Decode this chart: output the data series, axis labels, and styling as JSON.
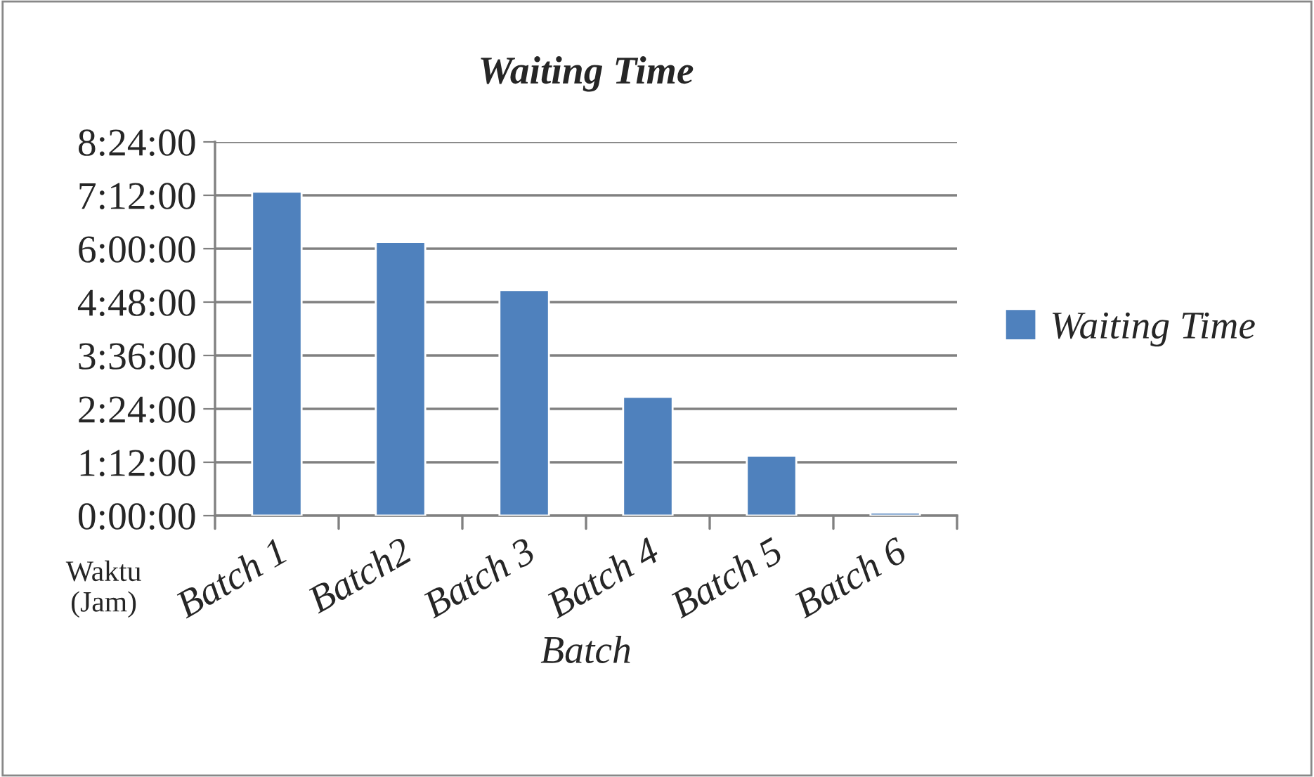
{
  "chart_data": {
    "type": "bar",
    "title": "Waiting Time",
    "xlabel": "Batch",
    "ylabel": "Waktu\n(Jam)",
    "categories": [
      "Batch 1",
      "Batch2",
      "Batch 3",
      "Batch 4",
      "Batch 5",
      "Batch 6"
    ],
    "series": [
      {
        "name": "Waiting Time",
        "color": "#4f81bd",
        "values": [
          7.28,
          6.15,
          5.07,
          2.67,
          1.35,
          0.07
        ]
      }
    ],
    "ylim": [
      0,
      8.4
    ],
    "yticks": [
      {
        "value": 0,
        "label": "0:00:00"
      },
      {
        "value": 1.2,
        "label": "1:12:00"
      },
      {
        "value": 2.4,
        "label": "2:24:00"
      },
      {
        "value": 3.6,
        "label": "3:36:00"
      },
      {
        "value": 4.8,
        "label": "4:48:00"
      },
      {
        "value": 6,
        "label": "6:00:00"
      },
      {
        "value": 7.2,
        "label": "7:12:00"
      },
      {
        "value": 8.4,
        "label": "8:24:00"
      }
    ],
    "grid": "y",
    "legend": "right"
  }
}
